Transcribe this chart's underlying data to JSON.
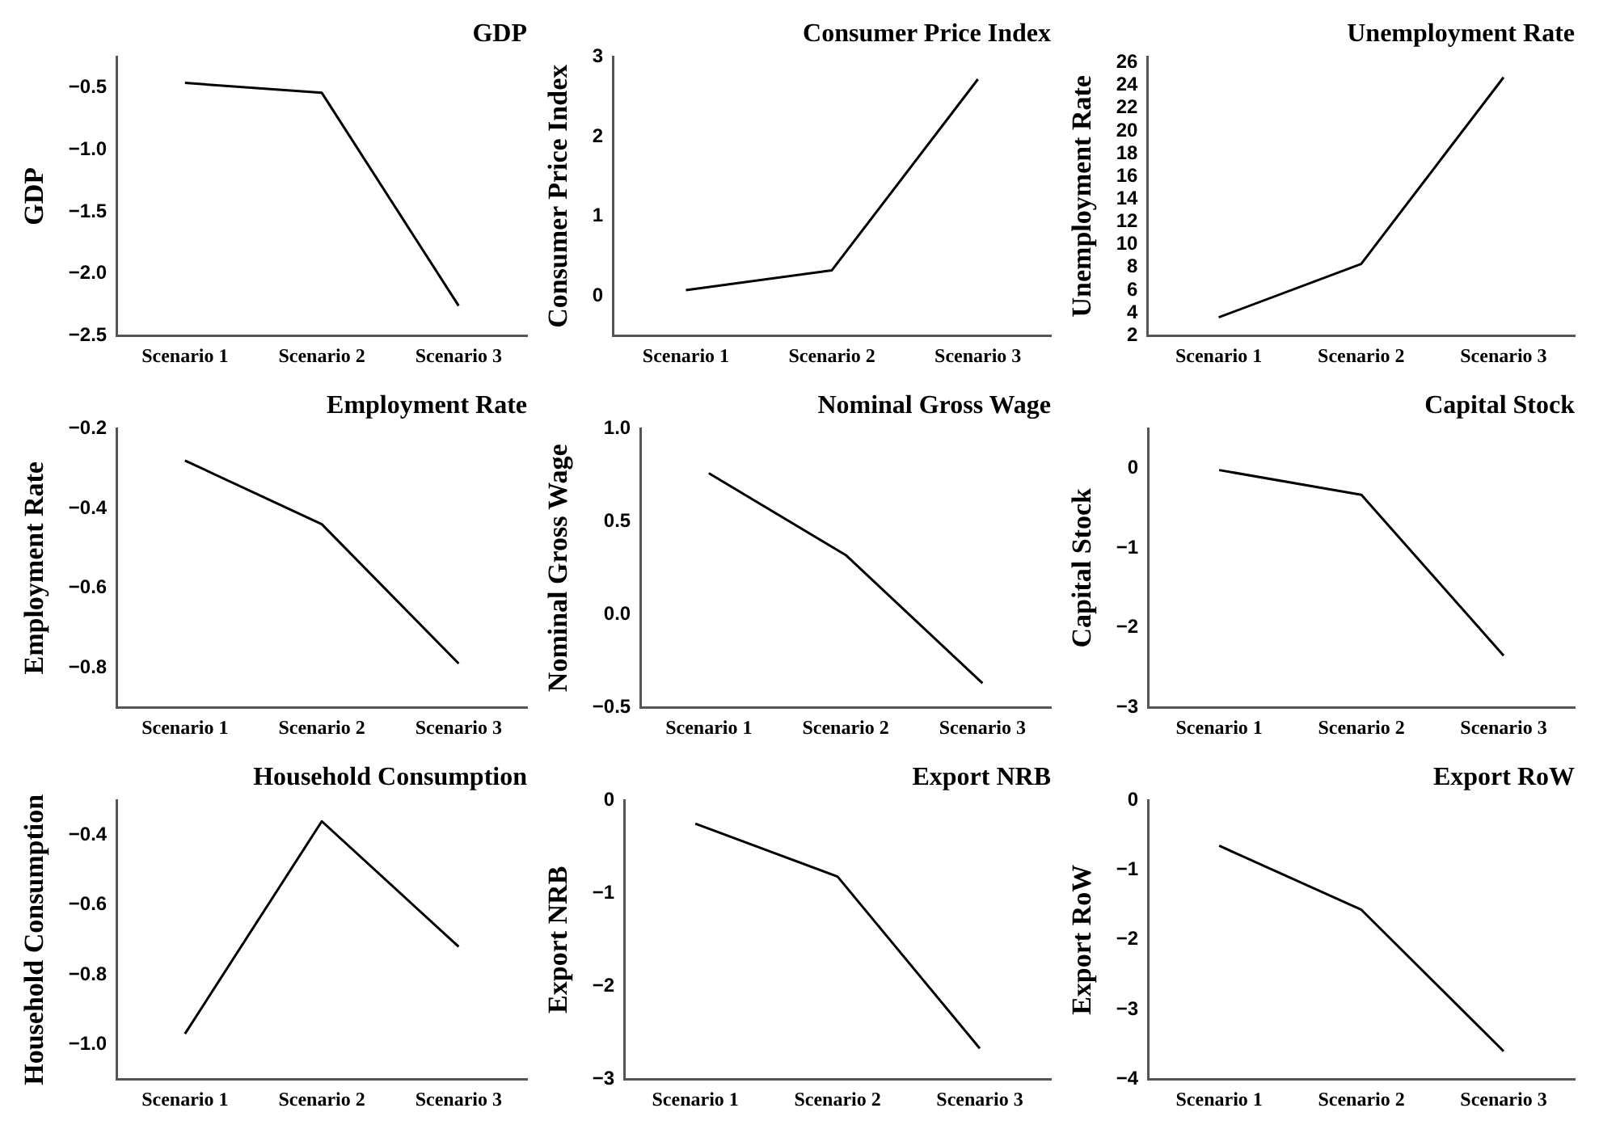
{
  "chart_data": [
    {
      "type": "line",
      "title": "GDP",
      "ylabel": "GDP",
      "categories": [
        "Scenario 1",
        "Scenario 2",
        "Scenario 3"
      ],
      "series": [
        {
          "color": "#000000",
          "values": [
            -0.46,
            -0.54,
            -2.26
          ]
        }
      ],
      "ylim": [
        -2.5,
        -0.25
      ],
      "yticks": [
        -2.5,
        {
          "value": -2,
          "label": "−2.0"
        },
        -1.5,
        {
          "value": -1,
          "label": "−1.0"
        },
        -0.5
      ],
      "grid": false,
      "marker": "none"
    },
    {
      "type": "line",
      "title": "Consumer Price Index",
      "ylabel": "Consumer Price Index",
      "categories": [
        "Scenario 1",
        "Scenario 2",
        "Scenario 3"
      ],
      "series": [
        {
          "color": "#000000",
          "values": [
            0.07,
            0.32,
            2.72
          ]
        }
      ],
      "ylim": [
        -0.5,
        3
      ],
      "yticks": [
        0,
        1,
        2,
        3
      ],
      "grid": false,
      "marker": "none"
    },
    {
      "type": "line",
      "title": "Unemployment Rate",
      "ylabel": "Unemployment Rate",
      "categories": [
        "Scenario 1",
        "Scenario 2",
        "Scenario 3"
      ],
      "series": [
        {
          "color": "#000000",
          "values": [
            3.6,
            8.3,
            24.7
          ]
        }
      ],
      "ylim": [
        2,
        26.5
      ],
      "yticks": [
        2,
        4,
        6,
        8,
        10,
        12,
        14,
        16,
        18,
        20,
        22,
        24,
        26
      ],
      "grid": false,
      "marker": "none"
    },
    {
      "type": "line",
      "title": "Employment Rate",
      "ylabel": "Employment Rate",
      "categories": [
        "Scenario 1",
        "Scenario 2",
        "Scenario 3"
      ],
      "series": [
        {
          "color": "#000000",
          "values": [
            -0.28,
            -0.44,
            -0.79
          ]
        }
      ],
      "ylim": [
        -0.9,
        -0.2
      ],
      "yticks": [
        -0.8,
        -0.6,
        -0.4,
        -0.2
      ],
      "grid": false,
      "marker": "none"
    },
    {
      "type": "line",
      "title": "Nominal Gross Wage",
      "ylabel": "Nominal Gross Wage",
      "categories": [
        "Scenario 1",
        "Scenario 2",
        "Scenario 3"
      ],
      "series": [
        {
          "color": "#000000",
          "values": [
            0.76,
            0.32,
            -0.37
          ]
        }
      ],
      "ylim": [
        -0.5,
        1.0
      ],
      "yticks": [
        -0.5,
        {
          "value": 0,
          "label": "0.0"
        },
        0.5,
        {
          "value": 1,
          "label": "1.0"
        }
      ],
      "grid": false,
      "marker": "none"
    },
    {
      "type": "line",
      "title": "Capital Stock",
      "ylabel": "Capital Stock",
      "categories": [
        "Scenario 1",
        "Scenario 2",
        "Scenario 3"
      ],
      "series": [
        {
          "color": "#000000",
          "values": [
            -0.02,
            -0.33,
            -2.35
          ]
        }
      ],
      "ylim": [
        -3,
        0.5
      ],
      "yticks": [
        -3,
        -2,
        -1,
        0
      ],
      "grid": false,
      "marker": "none"
    },
    {
      "type": "line",
      "title": "Household Consumption",
      "ylabel": "Household Consumption",
      "categories": [
        "Scenario 1",
        "Scenario 2",
        "Scenario 3"
      ],
      "series": [
        {
          "color": "#000000",
          "values": [
            -0.97,
            -0.36,
            -0.72
          ]
        }
      ],
      "ylim": [
        -1.1,
        -0.3
      ],
      "yticks": [
        {
          "value": -1,
          "label": "−1.0"
        },
        -0.8,
        -0.6,
        -0.4
      ],
      "grid": false,
      "marker": "none"
    },
    {
      "type": "line",
      "title": "Export NRB",
      "ylabel": "Export NRB",
      "categories": [
        "Scenario 1",
        "Scenario 2",
        "Scenario 3"
      ],
      "series": [
        {
          "color": "#000000",
          "values": [
            -0.25,
            -0.82,
            -2.67
          ]
        }
      ],
      "ylim": [
        -3,
        0
      ],
      "yticks": [
        -3,
        -2,
        -1,
        0
      ],
      "grid": false,
      "marker": "none"
    },
    {
      "type": "line",
      "title": "Export RoW",
      "ylabel": "Export RoW",
      "categories": [
        "Scenario 1",
        "Scenario 2",
        "Scenario 3"
      ],
      "series": [
        {
          "color": "#000000",
          "values": [
            -0.65,
            -1.57,
            -3.6
          ]
        }
      ],
      "ylim": [
        -4,
        0
      ],
      "yticks": [
        -4,
        -3,
        -2,
        -1,
        0
      ],
      "grid": false,
      "marker": "none"
    }
  ]
}
